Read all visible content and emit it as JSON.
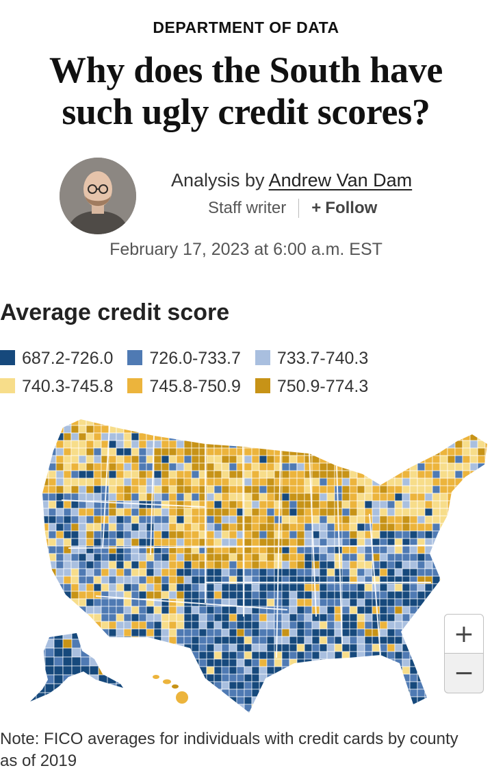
{
  "kicker": "DEPARTMENT OF DATA",
  "headline": "Why does the South have such ugly credit scores?",
  "byline": {
    "prefix": "Analysis by",
    "author": "Andrew Van Dam"
  },
  "role": "Staff writer",
  "follow_label": "Follow",
  "follow_icon": "plus-icon",
  "date": "February 17, 2023 at 6:00 a.m. EST",
  "chart_title": "Average credit score",
  "legend": [
    {
      "label": "687.2-726.0",
      "color": "#16497c"
    },
    {
      "label": "726.0-733.7",
      "color": "#4f7ab3"
    },
    {
      "label": "733.7-740.3",
      "color": "#a9bfdf"
    },
    {
      "label": "740.3-745.8",
      "color": "#f7dd8a"
    },
    {
      "label": "745.8-750.9",
      "color": "#ecb43c"
    },
    {
      "label": "750.9-774.3",
      "color": "#c79317"
    }
  ],
  "zoom": {
    "in": "+",
    "out": "−"
  },
  "note": "Note: FICO averages for individuals with credit cards by county as of 2019"
}
